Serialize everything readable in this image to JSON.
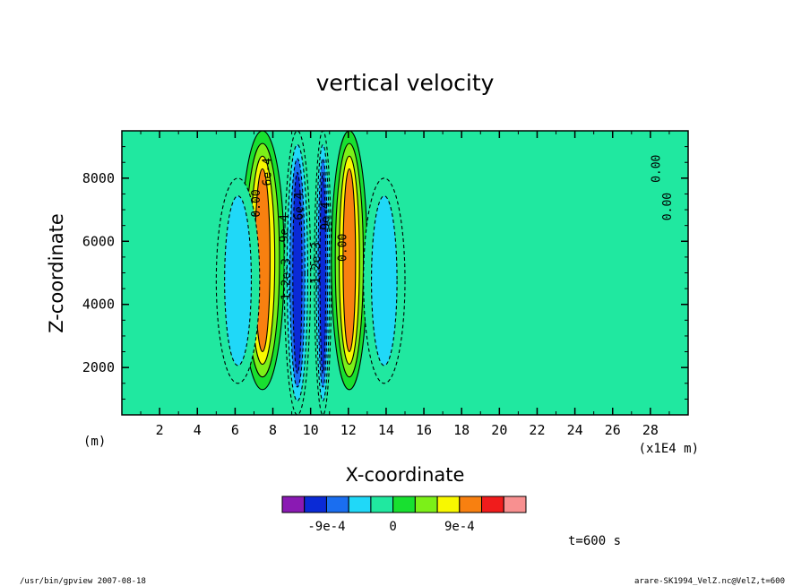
{
  "chart_data": {
    "type": "contour",
    "title": "vertical velocity",
    "xlabel": "X-coordinate",
    "ylabel": "Z-coordinate",
    "x_unit_left": "(m)",
    "x_unit_right": "(x1E4 m)",
    "xlim": [
      0,
      30
    ],
    "ylim": [
      500,
      9500
    ],
    "x_ticks": [
      2,
      4,
      6,
      8,
      10,
      12,
      14,
      16,
      18,
      20,
      22,
      24,
      26,
      28
    ],
    "y_ticks": [
      2000,
      4000,
      6000,
      8000
    ],
    "contour_levels": [
      -0.0012,
      -0.0009,
      -0.0006,
      -0.0003,
      0,
      0.0003,
      0.0006,
      0.0009,
      0.0012
    ],
    "field_bands": [
      {
        "x0": 6.3,
        "x1": 8.6,
        "z0": 1300,
        "z1": 9500,
        "peak": 0.0012,
        "direction": "up"
      },
      {
        "x0": 8.6,
        "x1": 10.0,
        "z0": 500,
        "z1": 9500,
        "peak": -0.0012,
        "direction": "down"
      },
      {
        "x0": 10.2,
        "x1": 11.1,
        "z0": 500,
        "z1": 9500,
        "peak": -0.0012,
        "direction": "down"
      },
      {
        "x0": 11.1,
        "x1": 13.0,
        "z0": 1300,
        "z1": 9500,
        "peak": 0.0012,
        "direction": "up"
      },
      {
        "x0": 5.0,
        "x1": 7.3,
        "z0": 1500,
        "z1": 8000,
        "peak": -0.0006,
        "direction": "down"
      },
      {
        "x0": 12.8,
        "x1": 15.0,
        "z0": 1500,
        "z1": 8000,
        "peak": -0.0006,
        "direction": "down"
      }
    ],
    "contour_labels": [
      "0.00",
      "6e-4",
      "-9e-4",
      "-6e-4",
      "1.2e-3",
      "-1.2e-3",
      "9e-4",
      "0.00",
      "0.00",
      "0.00"
    ],
    "colorbar": {
      "colors": [
        "#8a1ab3",
        "#0a2ad6",
        "#1a6ef0",
        "#20d8f8",
        "#20e8a0",
        "#18e030",
        "#7cf018",
        "#f8f800",
        "#f88010",
        "#f01c1c",
        "#f89090"
      ],
      "tick_labels": [
        "-9e-4",
        "0",
        "9e-4"
      ]
    },
    "time_label": "t=600 s"
  },
  "footer": {
    "program": "/usr/bin/gpview  2007-08-18",
    "source": "arare-SK1994_VelZ.nc@VelZ,t=600"
  }
}
